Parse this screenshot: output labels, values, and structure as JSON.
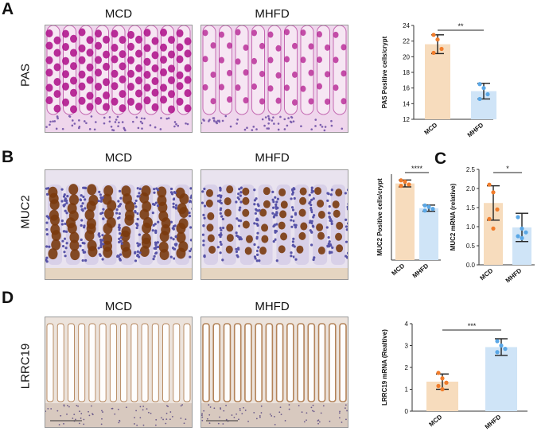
{
  "panels": {
    "A": {
      "letter": "A",
      "row_label": "PAS",
      "col_labels": [
        "MCD",
        "MHFD"
      ],
      "chart_data": {
        "type": "bar",
        "categories": [
          "MCD",
          "MHFD"
        ],
        "values": [
          21.6,
          15.6
        ],
        "error": [
          1.2,
          1.0
        ],
        "points": [
          [
            22.8,
            22.2,
            21.0,
            20.5
          ],
          [
            16.5,
            16.0,
            15.2,
            14.6
          ]
        ],
        "ylabel": "PAS Positive cells/crypt",
        "ylim": [
          12,
          24
        ],
        "yticks": [
          12,
          14,
          16,
          18,
          20,
          22,
          24
        ],
        "significance": "**",
        "colors": [
          "#f7dcbd",
          "#cfe4f7"
        ],
        "point_colors": [
          "#f07c2b",
          "#5aa7e6"
        ]
      }
    },
    "B": {
      "letter": "B",
      "row_label": "MUC2",
      "col_labels": [
        "MCD",
        "MHFD"
      ],
      "chart_data": {
        "type": "bar",
        "categories": [
          "MCD",
          "MHFD"
        ],
        "values": [
          22.3,
          15.1
        ],
        "error": [
          1.0,
          0.9
        ],
        "points": [
          [
            23.2,
            22.8,
            22.0,
            21.6
          ],
          [
            15.9,
            15.5,
            14.9,
            14.4
          ]
        ],
        "ylabel": "MUC2 Positive cells/crypt",
        "ylim": [
          0,
          25
        ],
        "yticks": [],
        "significance": "****",
        "colors": [
          "#f7dcbd",
          "#cfe4f7"
        ],
        "point_colors": [
          "#f07c2b",
          "#5aa7e6"
        ]
      }
    },
    "C": {
      "letter": "C",
      "chart_data": {
        "type": "bar",
        "categories": [
          "MCD",
          "MHFD"
        ],
        "values": [
          1.62,
          0.98
        ],
        "error": [
          0.45,
          0.37
        ],
        "points": [
          [
            2.1,
            1.9,
            1.45,
            1.2,
            0.95
          ],
          [
            1.25,
            0.95,
            0.85,
            0.75,
            0.7
          ]
        ],
        "ylabel": "MUC2 mRNA (relative)",
        "ylim": [
          0,
          2.5
        ],
        "yticks": [
          "0.0",
          "0.5",
          "1.0",
          "1.5",
          "2.0",
          "2.5"
        ],
        "significance": "*",
        "colors": [
          "#f7dcbd",
          "#cfe4f7"
        ],
        "point_colors": [
          "#f07c2b",
          "#5aa7e6"
        ]
      }
    },
    "D": {
      "letter": "D",
      "row_label": "LRRC19",
      "col_labels": [
        "MCD",
        "MHFD"
      ],
      "chart_data": {
        "type": "bar",
        "categories": [
          "MCD",
          "MHFD"
        ],
        "values": [
          1.35,
          2.93
        ],
        "error": [
          0.35,
          0.38
        ],
        "points": [
          [
            1.75,
            1.5,
            1.3,
            1.15,
            1.0
          ],
          [
            3.2,
            3.0,
            2.85,
            2.7
          ]
        ],
        "ylabel": "LRRC19 mRNA (Realtive)",
        "ylim": [
          0,
          4
        ],
        "yticks": [
          "0",
          "1",
          "2",
          "3",
          "4"
        ],
        "significance": "***",
        "colors": [
          "#f7dcbd",
          "#cfe4f7"
        ],
        "point_colors": [
          "#f07c2b",
          "#5aa7e6"
        ]
      }
    }
  },
  "colors": {
    "pas_bg": "#efd6ec",
    "pas_goblet": "#b1188e",
    "pas_nuclei": "#7d5fae",
    "muc2_bg": "#e9e3ef",
    "muc2_goblet": "#7a3a0e",
    "muc2_nuclei": "#5753a8",
    "lrrc_bg": "#ece3dc",
    "lrrc_stain": "#b07e52",
    "lrrc_lumen": "#ffffff"
  }
}
